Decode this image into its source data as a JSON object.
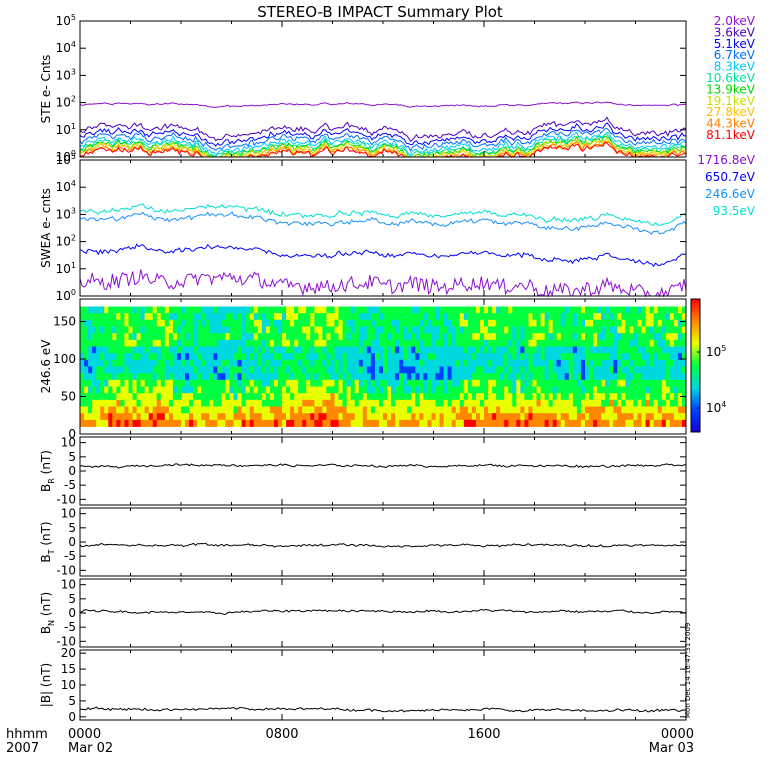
{
  "title": "STEREO-B IMPACT Summary Plot",
  "colors": {
    "frame": "#000000",
    "background": "#ffffff",
    "trace": "#000000",
    "ste_bg": "#ffffff"
  },
  "colorbar": {
    "labels": [
      "10^5",
      "10^4"
    ],
    "palette": [
      "#1400d8",
      "#0040ff",
      "#00d8e0",
      "#00ff40",
      "#e8ff00",
      "#ff8800",
      "#ff0000"
    ]
  },
  "chart_data": [
    {
      "type": "line",
      "panel": "ste",
      "ylabel": "STE e- Cnts",
      "yscale": "log",
      "ylim_exp": [
        0,
        5
      ],
      "yticks": [
        "10^0",
        "10^1",
        "10^2",
        "10^3",
        "10^4",
        "10^5"
      ],
      "series": [
        {
          "name": "2.0keV",
          "color": "#8c10d0",
          "level": 80
        },
        {
          "name": "3.6keV",
          "color": "#4d00c0",
          "level": 8
        },
        {
          "name": "5.1keV",
          "color": "#0000ff",
          "level": 5
        },
        {
          "name": "6.7keV",
          "color": "#0070ff",
          "level": 3.5
        },
        {
          "name": "8.3keV",
          "color": "#00c8ff",
          "level": 2.5
        },
        {
          "name": "10.6keV",
          "color": "#00e0a0",
          "level": 2.0
        },
        {
          "name": "13.9keV",
          "color": "#00d800",
          "level": 1.7
        },
        {
          "name": "19.1keV",
          "color": "#c8e000",
          "level": 1.5
        },
        {
          "name": "27.8keV",
          "color": "#ffc000",
          "level": 1.3
        },
        {
          "name": "44.3keV",
          "color": "#ff8000",
          "level": 1.15
        },
        {
          "name": "81.1keV",
          "color": "#ff0000",
          "level": 1.05
        }
      ]
    },
    {
      "type": "line",
      "panel": "swea",
      "ylabel": "SWEA e- cnts",
      "yscale": "log",
      "ylim_exp": [
        0,
        5
      ],
      "yticks": [
        "10^0",
        "10^1",
        "10^2",
        "10^3",
        "10^4",
        "10^5"
      ],
      "series": [
        {
          "name": "1716.8eV",
          "color": "#8c10d0",
          "level": 3
        },
        {
          "name": "650.7eV",
          "color": "#0000ff",
          "level": 40
        },
        {
          "name": "246.6eV",
          "color": "#1890ff",
          "level": 600
        },
        {
          "name": "93.5eV",
          "color": "#00e0d0",
          "level": 1200
        }
      ]
    },
    {
      "type": "heatmap",
      "panel": "pad",
      "ylabel": "246.6 eV",
      "ylim": [
        0,
        180
      ],
      "yticks": [
        "0",
        "50",
        "100",
        "150"
      ],
      "cmin_exp": 3.7,
      "cmax_exp": 5.8
    },
    {
      "type": "line",
      "panel": "br",
      "ylabel": "BR (nT)",
      "ylabel_main": "B",
      "ylabel_sub": "R",
      "ylabel_unit": " (nT)",
      "ylim": [
        -12,
        12
      ],
      "yticks": [
        "-10",
        "-5",
        "0",
        "5",
        "10"
      ],
      "ytick_values": [
        -10,
        -5,
        0,
        5,
        10
      ],
      "baseline": 1.8
    },
    {
      "type": "line",
      "panel": "bt",
      "ylabel": "BT (nT)",
      "ylabel_main": "B",
      "ylabel_sub": "T",
      "ylabel_unit": " (nT)",
      "ylim": [
        -12,
        12
      ],
      "yticks": [
        "-10",
        "-5",
        "0",
        "5",
        "10"
      ],
      "ytick_values": [
        -10,
        -5,
        0,
        5,
        10
      ],
      "baseline": -1.2
    },
    {
      "type": "line",
      "panel": "bn",
      "ylabel": "BN (nT)",
      "ylabel_main": "B",
      "ylabel_sub": "N",
      "ylabel_unit": " (nT)",
      "ylim": [
        -12,
        12
      ],
      "yticks": [
        "-10",
        "-5",
        "0",
        "5",
        "10"
      ],
      "ytick_values": [
        -10,
        -5,
        0,
        5,
        10
      ],
      "baseline": 0.5
    },
    {
      "type": "line",
      "panel": "bmag",
      "ylabel": "|B| (nT)",
      "ylabel_main": "|B|",
      "ylabel_sub": "",
      "ylabel_unit": " (nT)",
      "ylim": [
        -1,
        21
      ],
      "yticks": [
        "0",
        "5",
        "10",
        "15",
        "20"
      ],
      "ytick_values": [
        0,
        5,
        10,
        15,
        20
      ],
      "baseline": 2.3
    }
  ],
  "xaxis": {
    "label_line1": "hhmm",
    "label_line2": "2007",
    "ticks": [
      {
        "hours": 0,
        "label": "0000",
        "date": "Mar 02"
      },
      {
        "hours": 8,
        "label": "0800",
        "date": ""
      },
      {
        "hours": 16,
        "label": "1600",
        "date": ""
      },
      {
        "hours": 24,
        "label": "0000",
        "date": "Mar 03"
      }
    ],
    "range_hours": [
      0,
      24
    ]
  },
  "stamp": "Mon Dec 14 16:47:31 2009"
}
